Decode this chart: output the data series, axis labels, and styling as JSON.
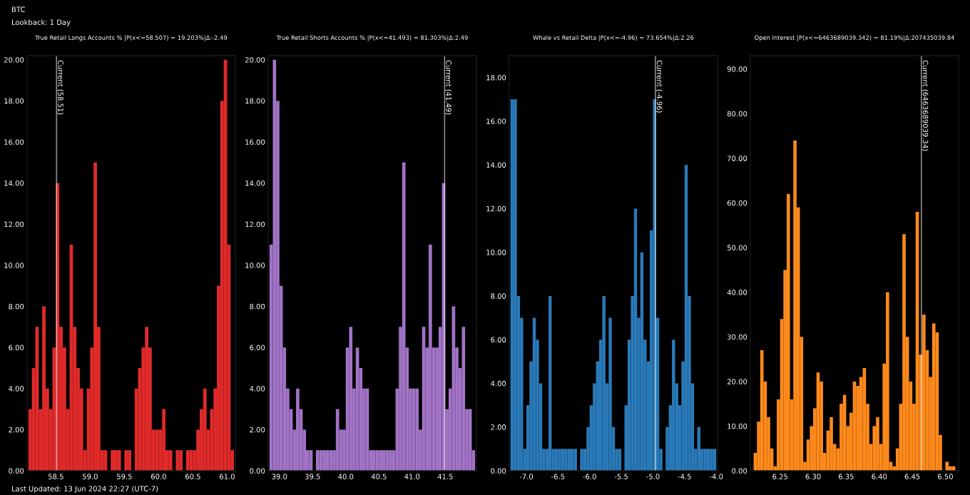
{
  "chart_data": [
    {
      "type": "histogram",
      "title": "True Retail Longs Accounts % |P(x<=58.507) = 19.203%|Δ:-2.49",
      "color": "#e02a2a",
      "grid": false,
      "annotations": [
        "BTC",
        "Lookback: 1 Day",
        "Last Updated: 13 Jun 2024 22:27 (UTC-7)"
      ],
      "bins": [
        58.1,
        58.15,
        58.2,
        58.25,
        58.3,
        58.35,
        58.4,
        58.45,
        58.5,
        58.55,
        58.6,
        58.65,
        58.7,
        58.75,
        58.8,
        58.85,
        58.9,
        58.95,
        59.0,
        59.05,
        59.1,
        59.15,
        59.2,
        59.25,
        59.3,
        59.35,
        59.4,
        59.45,
        59.5,
        59.55,
        59.6,
        59.65,
        59.7,
        59.75,
        59.8,
        59.85,
        59.9,
        59.95,
        60.0,
        60.05,
        60.1,
        60.15,
        60.2,
        60.25,
        60.3,
        60.35,
        60.4,
        60.45,
        60.5,
        60.55,
        60.6,
        60.65,
        60.7,
        60.75,
        60.8,
        60.85,
        60.9,
        60.95,
        61.0,
        61.05,
        61.1
      ],
      "values": [
        3,
        5,
        7,
        3,
        8,
        4,
        3,
        6,
        14,
        7,
        6,
        3,
        11,
        7,
        5,
        4,
        1,
        4,
        6,
        15,
        7,
        1,
        1,
        0,
        1,
        1,
        1,
        0,
        1,
        1,
        0,
        4,
        5,
        6,
        7,
        6,
        2,
        2,
        2,
        3,
        1,
        1,
        0,
        1,
        1,
        0,
        1,
        1,
        1,
        2,
        3,
        4,
        2,
        3,
        4,
        9,
        18,
        20,
        11,
        1
      ],
      "xlim": [
        58.08,
        61.12
      ],
      "ylim": [
        0,
        20.2
      ],
      "xticks": [
        58.5,
        {
          "value": 59,
          "label": "59.0"
        },
        59.5,
        {
          "value": 60,
          "label": "60.0"
        },
        60.5,
        {
          "value": 61,
          "label": "61.0"
        }
      ],
      "yticks": [
        {
          "value": 0,
          "label": "0.00"
        },
        {
          "value": 2,
          "label": "2.00"
        },
        {
          "value": 4,
          "label": "4.00"
        },
        {
          "value": 6,
          "label": "6.00"
        },
        {
          "value": 8,
          "label": "8.00"
        },
        {
          "value": 10,
          "label": "10.00"
        },
        {
          "value": 12,
          "label": "12.00"
        },
        {
          "value": 14,
          "label": "14.00"
        },
        {
          "value": 16,
          "label": "16.00"
        },
        {
          "value": 18,
          "label": "18.00"
        },
        {
          "value": 20,
          "label": "20.00"
        }
      ],
      "ref_lines": [
        {
          "axis": "x",
          "value": 58.51,
          "label": "Current (58.51)",
          "color": "#ffffff"
        }
      ]
    },
    {
      "type": "histogram",
      "title": "True Retail Shorts Accounts % |P(x<=41.493) = 81.303%|Δ:2.49",
      "color": "#a173c6",
      "grid": false,
      "bins": [
        38.85,
        38.9,
        38.95,
        39.0,
        39.05,
        39.1,
        39.15,
        39.2,
        39.25,
        39.3,
        39.35,
        39.4,
        39.45,
        39.5,
        39.55,
        39.6,
        39.65,
        39.7,
        39.75,
        39.8,
        39.85,
        39.9,
        39.95,
        40.0,
        40.05,
        40.1,
        40.15,
        40.2,
        40.25,
        40.3,
        40.35,
        40.4,
        40.45,
        40.5,
        40.55,
        40.6,
        40.65,
        40.7,
        40.75,
        40.8,
        40.85,
        40.9,
        40.95,
        41.0,
        41.05,
        41.1,
        41.15,
        41.2,
        41.25,
        41.3,
        41.35,
        41.4,
        41.45,
        41.5,
        41.55,
        41.6,
        41.65,
        41.7,
        41.75,
        41.8,
        41.85,
        41.9,
        41.95
      ],
      "values": [
        11,
        20,
        18,
        9,
        6,
        4,
        3,
        2,
        4,
        3,
        2,
        1,
        1,
        0,
        1,
        1,
        1,
        1,
        1,
        1,
        3,
        2,
        2,
        6,
        7,
        4,
        6,
        5,
        4,
        4,
        1,
        1,
        1,
        1,
        1,
        1,
        1,
        1,
        4,
        7,
        15,
        6,
        4,
        4,
        4,
        2,
        7,
        6,
        11,
        6,
        6,
        7,
        14,
        3,
        4,
        8,
        6,
        5,
        7,
        3,
        3,
        1
      ],
      "xlim": [
        38.83,
        41.97
      ],
      "ylim": [
        0,
        20.2
      ],
      "xticks": [
        {
          "value": 39,
          "label": "39.0"
        },
        39.5,
        {
          "value": 40,
          "label": "40.0"
        },
        40.5,
        {
          "value": 41,
          "label": "41.0"
        },
        41.5
      ],
      "yticks": [
        {
          "value": 0,
          "label": "0.00"
        },
        {
          "value": 2,
          "label": "2.00"
        },
        {
          "value": 4,
          "label": "4.00"
        },
        {
          "value": 6,
          "label": "6.00"
        },
        {
          "value": 8,
          "label": "8.00"
        },
        {
          "value": 10,
          "label": "10.00"
        },
        {
          "value": 12,
          "label": "12.00"
        },
        {
          "value": 14,
          "label": "14.00"
        },
        {
          "value": 16,
          "label": "16.00"
        },
        {
          "value": 18,
          "label": "18.00"
        },
        {
          "value": 20,
          "label": "20.00"
        }
      ],
      "ref_lines": [
        {
          "axis": "x",
          "value": 41.49,
          "label": "Current (41.49)",
          "color": "#ffffff"
        }
      ]
    },
    {
      "type": "histogram",
      "title": "Whale vs Retail Delta |P(x<=-4.96) = 73.654%|Δ:2.26",
      "color": "#2a7ab9",
      "grid": false,
      "bins": [
        -7.25,
        -7.2,
        -7.15,
        -7.1,
        -7.05,
        -7.0,
        -6.95,
        -6.9,
        -6.85,
        -6.8,
        -6.75,
        -6.7,
        -6.65,
        -6.6,
        -6.55,
        -6.5,
        -6.45,
        -6.4,
        -6.35,
        -6.3,
        -6.25,
        -6.2,
        -6.15,
        -6.1,
        -6.05,
        -6.0,
        -5.95,
        -5.9,
        -5.85,
        -5.8,
        -5.75,
        -5.7,
        -5.65,
        -5.6,
        -5.55,
        -5.5,
        -5.45,
        -5.4,
        -5.35,
        -5.3,
        -5.25,
        -5.2,
        -5.15,
        -5.1,
        -5.05,
        -5.0,
        -4.95,
        -4.9,
        -4.85,
        -4.8,
        -4.75,
        -4.7,
        -4.65,
        -4.6,
        -4.55,
        -4.5,
        -4.45,
        -4.4,
        -4.35,
        -4.3,
        -4.25,
        -4.2,
        -4.15,
        -4.1,
        -4.05,
        -4.0
      ],
      "values": [
        17,
        17,
        8,
        7,
        1,
        3,
        5,
        7,
        6,
        4,
        1,
        1,
        8,
        1,
        1,
        1,
        1,
        1,
        1,
        1,
        1,
        0,
        1,
        1,
        2,
        3,
        4,
        5,
        6,
        8,
        4,
        7,
        2,
        1,
        1,
        0,
        3,
        6,
        8,
        12,
        7,
        10,
        6,
        5,
        11,
        17,
        7,
        1,
        0,
        2,
        3,
        6,
        4,
        3,
        5,
        14,
        8,
        4,
        1,
        2,
        1,
        1,
        1,
        1,
        1
      ],
      "xlim": [
        -7.27,
        -3.98
      ],
      "ylim": [
        0,
        19
      ],
      "xticks": [
        {
          "value": -7,
          "label": "-7.0"
        },
        -6.5,
        {
          "value": -6,
          "label": "-6.0"
        },
        -5.5,
        {
          "value": -5,
          "label": "-5.0"
        },
        -4.5,
        {
          "value": -4,
          "label": "-4.0"
        }
      ],
      "yticks": [
        {
          "value": 0,
          "label": "0.00"
        },
        {
          "value": 2,
          "label": "2.00"
        },
        {
          "value": 4,
          "label": "4.00"
        },
        {
          "value": 6,
          "label": "6.00"
        },
        {
          "value": 8,
          "label": "8.00"
        },
        {
          "value": 10,
          "label": "10.00"
        },
        {
          "value": 12,
          "label": "12.00"
        },
        {
          "value": 14,
          "label": "14.00"
        },
        {
          "value": 16,
          "label": "16.00"
        },
        {
          "value": 18,
          "label": "18.00"
        }
      ],
      "ref_lines": [
        {
          "axis": "x",
          "value": -4.96,
          "label": "Current (-4.96)",
          "color": "#ffffff"
        }
      ]
    },
    {
      "type": "histogram",
      "title": "Open Interest |P(x<=6463689039.342) = 81.19%|Δ:207435039.84",
      "color": "#ff8a1c",
      "grid": false,
      "bins": [
        6.21,
        6.215,
        6.22,
        6.225,
        6.23,
        6.235,
        6.24,
        6.245,
        6.25,
        6.255,
        6.26,
        6.265,
        6.27,
        6.275,
        6.28,
        6.285,
        6.29,
        6.295,
        6.3,
        6.305,
        6.31,
        6.315,
        6.32,
        6.325,
        6.33,
        6.335,
        6.34,
        6.345,
        6.35,
        6.355,
        6.36,
        6.365,
        6.37,
        6.375,
        6.38,
        6.385,
        6.39,
        6.395,
        6.4,
        6.405,
        6.41,
        6.415,
        6.42,
        6.425,
        6.43,
        6.435,
        6.44,
        6.445,
        6.45,
        6.455,
        6.46,
        6.465,
        6.47,
        6.475,
        6.48,
        6.485,
        6.49,
        6.495,
        6.5,
        6.505,
        6.51,
        6.515
      ],
      "values": [
        4,
        11,
        27,
        20,
        12,
        5,
        1,
        16,
        34,
        45,
        62,
        16,
        74,
        59,
        30,
        2,
        7,
        10,
        14,
        22,
        20,
        4,
        9,
        12,
        6,
        5,
        15,
        17,
        10,
        13,
        20,
        19,
        21,
        23,
        15,
        6,
        10,
        12,
        6,
        24,
        40,
        2,
        1,
        5,
        15,
        53,
        30,
        20,
        15,
        58,
        26,
        35,
        27,
        21,
        33,
        31,
        8,
        0,
        2,
        1,
        1
      ],
      "xlim": [
        6.205,
        6.52
      ],
      "ylim": [
        0,
        93
      ],
      "xticks": [
        {
          "value": 6.25,
          "label": "6.25"
        },
        {
          "value": 6.3,
          "label": "6.30"
        },
        {
          "value": 6.35,
          "label": "6.35"
        },
        {
          "value": 6.4,
          "label": "6.40"
        },
        {
          "value": 6.45,
          "label": "6.45"
        },
        {
          "value": 6.5,
          "label": "6.50"
        }
      ],
      "yticks": [
        {
          "value": 0,
          "label": "0.00"
        },
        {
          "value": 10,
          "label": "10.00"
        },
        {
          "value": 20,
          "label": "20.00"
        },
        {
          "value": 30,
          "label": "30.00"
        },
        {
          "value": 40,
          "label": "40.00"
        },
        {
          "value": 50,
          "label": "50.00"
        },
        {
          "value": 60,
          "label": "60.00"
        },
        {
          "value": 70,
          "label": "70.00"
        },
        {
          "value": 80,
          "label": "80.00"
        },
        {
          "value": 90,
          "label": "90.00"
        }
      ],
      "ref_lines": [
        {
          "axis": "x",
          "value": 6.463689039,
          "label": "Current (6463689039.34)",
          "color": "#ffffff"
        }
      ]
    }
  ]
}
